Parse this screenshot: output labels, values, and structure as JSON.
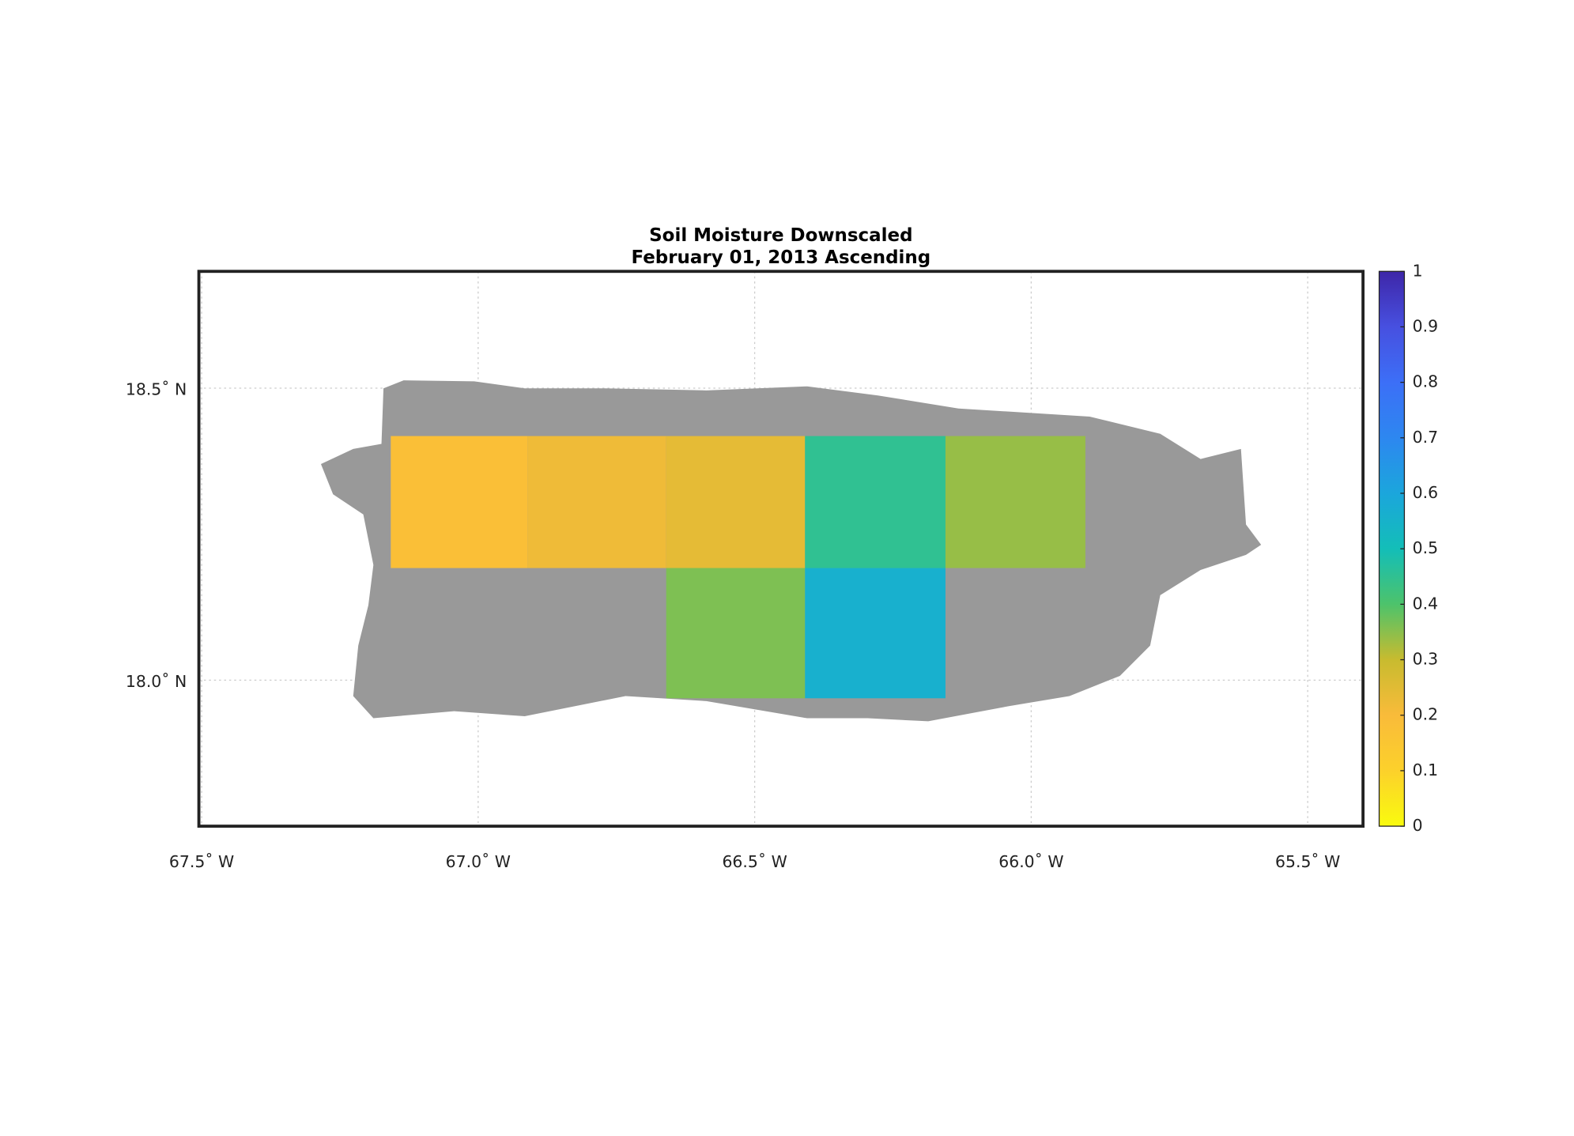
{
  "chart_data": {
    "type": "map",
    "title": [
      "Soil Moisture Downscaled",
      "February 01, 2013 Ascending"
    ],
    "xlim": [
      -67.505,
      -65.4
    ],
    "ylim": [
      17.75,
      18.7
    ],
    "xticks": [
      {
        "value": -67.5,
        "label": "67.5˚ W"
      },
      {
        "value": -67.0,
        "label": "67.0˚ W"
      },
      {
        "value": -66.5,
        "label": "66.5˚ W"
      },
      {
        "value": -66.0,
        "label": "66.0˚ W"
      },
      {
        "value": -65.5,
        "label": "65.5˚ W"
      }
    ],
    "yticks": [
      {
        "value": 18.0,
        "label": "18.0˚ N"
      },
      {
        "value": 18.5,
        "label": "18.5˚ N"
      }
    ],
    "grid": true,
    "land_color": "#999999",
    "tiles": [
      {
        "lon": [
          -67.158,
          -66.911
        ],
        "lat": [
          18.192,
          18.418
        ],
        "value": 0.18
      },
      {
        "lon": [
          -66.911,
          -66.66
        ],
        "lat": [
          18.192,
          18.418
        ],
        "value": 0.22
      },
      {
        "lon": [
          -66.66,
          -66.409
        ],
        "lat": [
          18.192,
          18.418
        ],
        "value": 0.24
      },
      {
        "lon": [
          -66.409,
          -66.155
        ],
        "lat": [
          18.192,
          18.418
        ],
        "value": 0.45
      },
      {
        "lon": [
          -66.155,
          -65.902
        ],
        "lat": [
          18.192,
          18.418
        ],
        "value": 0.34
      },
      {
        "lon": [
          -66.66,
          -66.409
        ],
        "lat": [
          17.969,
          18.192
        ],
        "value": 0.36
      },
      {
        "lon": [
          -66.409,
          -66.155
        ],
        "lat": [
          17.969,
          18.192
        ],
        "value": 0.56
      }
    ],
    "colorbar": {
      "lim": [
        0,
        1
      ],
      "ticks": [
        0,
        0.1,
        0.2,
        0.3,
        0.4,
        0.5,
        0.6,
        0.7,
        0.8,
        0.9,
        1
      ],
      "colormap": [
        "#f9fb0e",
        "#fcd12b",
        "#f9bb3a",
        "#c8bb2f",
        "#4dc36b",
        "#13beb8",
        "#1ba6dc",
        "#2d87f0",
        "#3c6ff7",
        "#4750e0",
        "#3e26a8"
      ]
    }
  }
}
